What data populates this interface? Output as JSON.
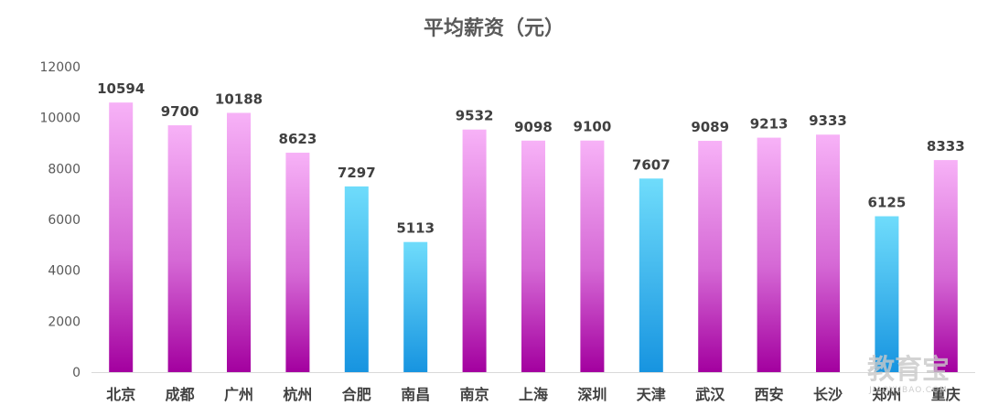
{
  "chart_data": {
    "type": "bar",
    "title": "平均薪资（元）",
    "xlabel": "",
    "ylabel": "",
    "ylim": [
      0,
      12000
    ],
    "yticks": [
      0,
      2000,
      4000,
      6000,
      8000,
      10000,
      12000
    ],
    "grid": false,
    "legend": "none",
    "categories": [
      "北京",
      "成都",
      "广州",
      "杭州",
      "合肥",
      "南昌",
      "南京",
      "上海",
      "深圳",
      "天津",
      "武汉",
      "西安",
      "长沙",
      "郑州",
      "重庆"
    ],
    "values": [
      10594,
      9700,
      10188,
      8623,
      7297,
      5113,
      9532,
      9098,
      9100,
      7607,
      9089,
      9213,
      9333,
      6125,
      8333
    ],
    "bar_style": [
      "magenta",
      "magenta",
      "magenta",
      "magenta",
      "cyan",
      "cyan",
      "magenta",
      "magenta",
      "magenta",
      "cyan",
      "magenta",
      "magenta",
      "magenta",
      "cyan",
      "magenta"
    ],
    "colors": {
      "magenta_top": "#f7b2f7",
      "magenta_mid": "#d568d5",
      "magenta_bottom": "#a3009f",
      "cyan_top": "#6fdcfb",
      "cyan_bottom": "#1794e0"
    }
  },
  "watermark": {
    "main": "教育宝",
    "sub": "JIAOYUBAO.COM"
  }
}
